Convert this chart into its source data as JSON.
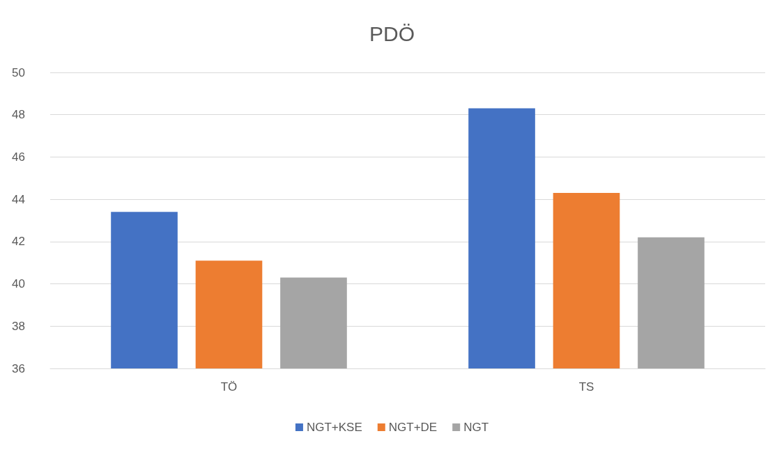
{
  "chart_data": {
    "type": "bar",
    "title": "PDÖ",
    "categories": [
      "TÖ",
      "TS"
    ],
    "series": [
      {
        "name": "NGT+KSE",
        "color": "#4472c4",
        "values": [
          43.4,
          48.3
        ]
      },
      {
        "name": "NGT+DE",
        "color": "#ed7d31",
        "values": [
          41.1,
          44.3
        ]
      },
      {
        "name": "NGT",
        "color": "#a5a5a5",
        "values": [
          40.3,
          42.2
        ]
      }
    ],
    "ylim": [
      36,
      50
    ],
    "yticks": [
      36,
      38,
      40,
      42,
      44,
      46,
      48,
      50
    ],
    "grid": "y",
    "legend": "bottom"
  }
}
